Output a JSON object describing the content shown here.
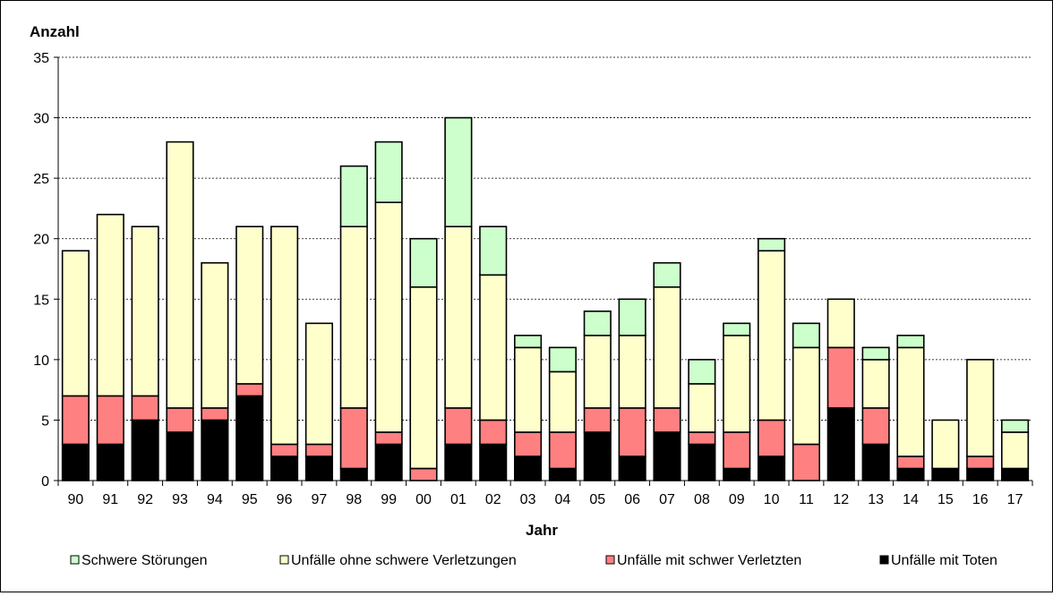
{
  "chart_data": {
    "type": "bar",
    "stacked": true,
    "ylabel": "Anzahl",
    "xlabel": "Jahr",
    "ylim": [
      0,
      35
    ],
    "yticks": [
      0,
      5,
      10,
      15,
      20,
      25,
      30,
      35
    ],
    "grid": true,
    "legend_position": "bottom",
    "categories": [
      "90",
      "91",
      "92",
      "93",
      "94",
      "95",
      "96",
      "97",
      "98",
      "99",
      "00",
      "01",
      "02",
      "03",
      "04",
      "05",
      "06",
      "07",
      "08",
      "09",
      "10",
      "11",
      "12",
      "13",
      "14",
      "15",
      "16",
      "17"
    ],
    "series": [
      {
        "name": "Unfälle mit Toten",
        "color": "#000000",
        "values": [
          3,
          3,
          5,
          4,
          5,
          7,
          2,
          2,
          1,
          3,
          0,
          3,
          3,
          2,
          1,
          4,
          2,
          4,
          3,
          1,
          2,
          0,
          6,
          3,
          1,
          1,
          1,
          1
        ]
      },
      {
        "name": "Unfälle mit schwer Verletzten",
        "color": "#ff8080",
        "values": [
          4,
          4,
          2,
          2,
          1,
          1,
          1,
          1,
          5,
          1,
          1,
          3,
          2,
          2,
          3,
          2,
          4,
          2,
          1,
          3,
          3,
          3,
          5,
          3,
          1,
          0,
          1,
          0
        ]
      },
      {
        "name": "Unfälle ohne schwere Verletzungen",
        "color": "#ffffcc",
        "values": [
          12,
          15,
          14,
          22,
          12,
          13,
          18,
          10,
          15,
          19,
          15,
          15,
          12,
          7,
          5,
          6,
          6,
          10,
          4,
          8,
          14,
          8,
          4,
          4,
          9,
          4,
          8,
          3
        ]
      },
      {
        "name": "Schwere Störungen",
        "color": "#ccffcc",
        "values": [
          0,
          0,
          0,
          0,
          0,
          0,
          0,
          0,
          5,
          5,
          4,
          9,
          4,
          1,
          2,
          2,
          3,
          2,
          2,
          1,
          1,
          2,
          0,
          1,
          1,
          0,
          0,
          1
        ]
      }
    ],
    "legend_order": [
      "Schwere Störungen",
      "Unfälle ohne schwere Verletzungen",
      "Unfälle mit schwer Verletzten",
      "Unfälle mit Toten"
    ]
  }
}
